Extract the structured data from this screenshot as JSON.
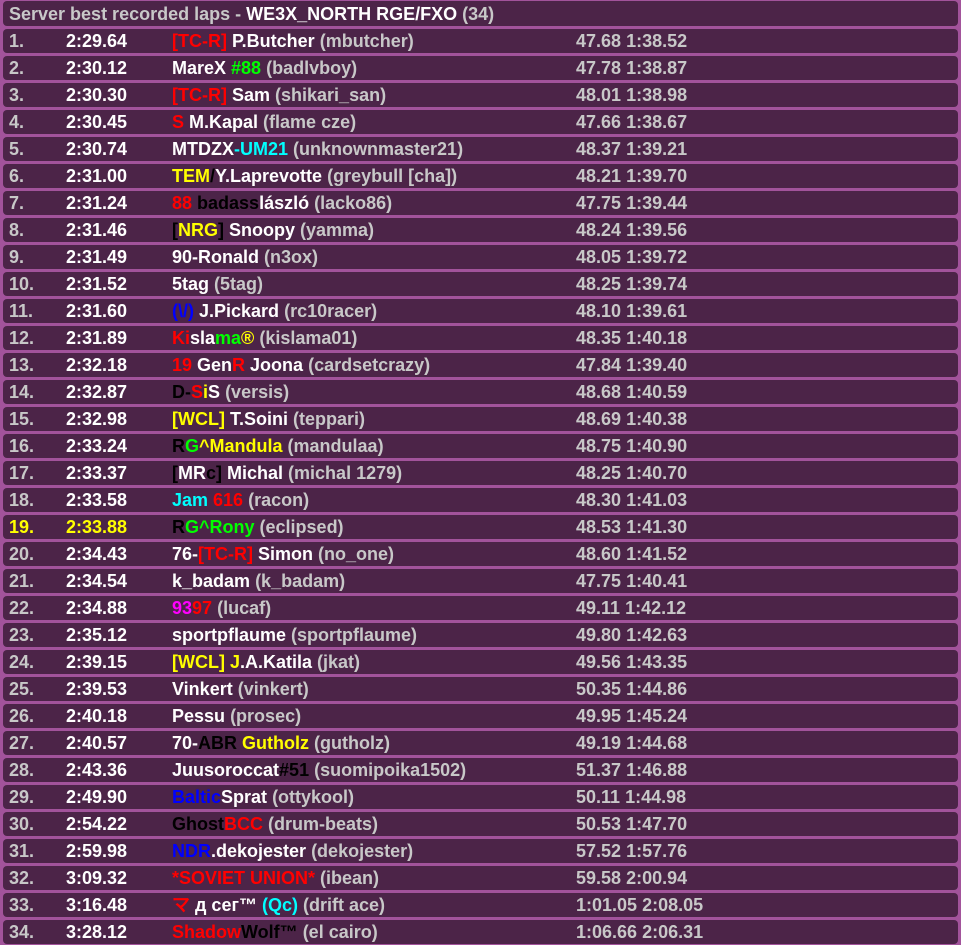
{
  "title": {
    "prefix": "Server best recorded laps - ",
    "track": "WE3X_NORTH RGE/FXO",
    "count": "(34)"
  },
  "colors": {
    "background": "#a2539b",
    "row": "#4c2448",
    "highlight": "#ffff00"
  },
  "highlighted_rank": "19.",
  "rows": [
    {
      "rank": "1.",
      "time": "2:29.64",
      "name": [
        [
          "[TC-R]",
          "#ff0000"
        ],
        [
          " P.Butcher",
          "#ffffff"
        ]
      ],
      "user": "(mbutcher)",
      "s1": "47.68",
      "s2": "1:38.52"
    },
    {
      "rank": "2.",
      "time": "2:30.12",
      "name": [
        [
          "MareX ",
          "#ffffff"
        ],
        [
          "#88",
          "#00ff00"
        ]
      ],
      "user": "(badlvboy)",
      "s1": "47.78",
      "s2": "1:38.87"
    },
    {
      "rank": "3.",
      "time": "2:30.30",
      "name": [
        [
          "[TC-R]",
          "#ff0000"
        ],
        [
          " Sam",
          "#ffffff"
        ]
      ],
      "user": "(shikari_san)",
      "s1": "48.01",
      "s2": "1:38.98"
    },
    {
      "rank": "4.",
      "time": "2:30.45",
      "name": [
        [
          "S",
          "#ff0000"
        ],
        [
          " M.Kapal",
          "#ffffff"
        ]
      ],
      "user": "(flame cze)",
      "s1": "47.66",
      "s2": "1:38.67"
    },
    {
      "rank": "5.",
      "time": "2:30.74",
      "name": [
        [
          "MTDZX",
          "#ffffff"
        ],
        [
          "-UM21",
          "#00ffff"
        ]
      ],
      "user": "(unknownmaster21)",
      "s1": "48.37",
      "s2": "1:39.21"
    },
    {
      "rank": "6.",
      "time": "2:31.00",
      "name": [
        [
          "TEM",
          "#ffff00"
        ],
        [
          "/",
          "#000000"
        ],
        [
          "Y.Laprevotte",
          "#ffffff"
        ]
      ],
      "user": "(greybull [cha])",
      "s1": "48.21",
      "s2": "1:39.70"
    },
    {
      "rank": "7.",
      "time": "2:31.24",
      "name": [
        [
          "88 ",
          "#ff0000"
        ],
        [
          "badass",
          "#000000"
        ],
        [
          "lászló",
          "#ffffff"
        ]
      ],
      "user": "(lacko86)",
      "s1": "47.75",
      "s2": "1:39.44"
    },
    {
      "rank": "8.",
      "time": "2:31.46",
      "name": [
        [
          "[",
          "#000000"
        ],
        [
          "NRG",
          "#ffff00"
        ],
        [
          "]",
          "#000000"
        ],
        [
          " Snoopy",
          "#ffffff"
        ]
      ],
      "user": "(yamma)",
      "s1": "48.24",
      "s2": "1:39.56"
    },
    {
      "rank": "9.",
      "time": "2:31.49",
      "name": [
        [
          "90-Ronald",
          "#ffffff"
        ]
      ],
      "user": "(n3ox)",
      "s1": "48.05",
      "s2": "1:39.72"
    },
    {
      "rank": "10.",
      "time": "2:31.52",
      "name": [
        [
          "5tag",
          "#ffffff"
        ]
      ],
      "user": "(5tag)",
      "s1": "48.25",
      "s2": "1:39.74"
    },
    {
      "rank": "11.",
      "time": "2:31.60",
      "name": [
        [
          "(\\/)",
          "#0000ff"
        ],
        [
          " J.Pickard",
          "#ffffff"
        ]
      ],
      "user": "(rc10racer)",
      "s1": "48.10",
      "s2": "1:39.61"
    },
    {
      "rank": "12.",
      "time": "2:31.89",
      "name": [
        [
          "Ki",
          "#ff0000"
        ],
        [
          "sla",
          "#ffffff"
        ],
        [
          "ma",
          "#00ff00"
        ],
        [
          "®",
          "#ffff00"
        ]
      ],
      "user": "(kislama01)",
      "s1": "48.35",
      "s2": "1:40.18"
    },
    {
      "rank": "13.",
      "time": "2:32.18",
      "name": [
        [
          "19 ",
          "#ff0000"
        ],
        [
          "Gen",
          "#ffffff"
        ],
        [
          "R",
          "#ff0000"
        ],
        [
          " Joona",
          "#ffffff"
        ]
      ],
      "user": "(cardsetcrazy)",
      "s1": "47.84",
      "s2": "1:39.40"
    },
    {
      "rank": "14.",
      "time": "2:32.87",
      "name": [
        [
          "D-",
          "#000000"
        ],
        [
          "S",
          "#ff0000"
        ],
        [
          "i",
          "#ffff00"
        ],
        [
          "S",
          "#ffffff"
        ]
      ],
      "user": "(versis)",
      "s1": "48.68",
      "s2": "1:40.59"
    },
    {
      "rank": "15.",
      "time": "2:32.98",
      "name": [
        [
          "[WCL]",
          "#ffff00"
        ],
        [
          " T.Soini",
          "#ffffff"
        ]
      ],
      "user": "(teppari)",
      "s1": "48.69",
      "s2": "1:40.38"
    },
    {
      "rank": "16.",
      "time": "2:33.24",
      "name": [
        [
          "R",
          "#000000"
        ],
        [
          "G",
          "#00ff00"
        ],
        [
          "^Mandula",
          "#ffff00"
        ]
      ],
      "user": "(mandulaa)",
      "s1": "48.75",
      "s2": "1:40.90"
    },
    {
      "rank": "17.",
      "time": "2:33.37",
      "name": [
        [
          "[",
          "#000000"
        ],
        [
          "MR",
          "#ffffff"
        ],
        [
          "c]",
          "#000000"
        ],
        [
          " Michal",
          "#ffffff"
        ]
      ],
      "user": "(michal 1279)",
      "s1": "48.25",
      "s2": "1:40.70"
    },
    {
      "rank": "18.",
      "time": "2:33.58",
      "name": [
        [
          "Jam ",
          "#00ffff"
        ],
        [
          "616",
          "#ff0000"
        ]
      ],
      "user": "(racon)",
      "s1": "48.30",
      "s2": "1:41.03"
    },
    {
      "rank": "19.",
      "time": "2:33.88",
      "name": [
        [
          "R",
          "#000000"
        ],
        [
          "G^Rony",
          "#00ff00"
        ]
      ],
      "user": "(eclipsed)",
      "s1": "48.53",
      "s2": "1:41.30"
    },
    {
      "rank": "20.",
      "time": "2:34.43",
      "name": [
        [
          "76-",
          "#ffffff"
        ],
        [
          "[TC-R]",
          "#ff0000"
        ],
        [
          " Simon",
          "#ffffff"
        ]
      ],
      "user": "(no_one)",
      "s1": "48.60",
      "s2": "1:41.52"
    },
    {
      "rank": "21.",
      "time": "2:34.54",
      "name": [
        [
          "k_badam",
          "#ffffff"
        ]
      ],
      "user": "(k_badam)",
      "s1": "47.75",
      "s2": "1:40.41"
    },
    {
      "rank": "22.",
      "time": "2:34.88",
      "name": [
        [
          "93",
          "#ff00ff"
        ],
        [
          "97",
          "#ff0000"
        ]
      ],
      "user": "(lucaf)",
      "s1": "49.11",
      "s2": "1:42.12"
    },
    {
      "rank": "23.",
      "time": "2:35.12",
      "name": [
        [
          "sportpflaume",
          "#ffffff"
        ]
      ],
      "user": "(sportpflaume)",
      "s1": "49.80",
      "s2": "1:42.63"
    },
    {
      "rank": "24.",
      "time": "2:39.15",
      "name": [
        [
          "[WCL] J",
          "#ffff00"
        ],
        [
          ".A.Katila",
          "#ffffff"
        ]
      ],
      "user": "(jkat)",
      "s1": "49.56",
      "s2": "1:43.35"
    },
    {
      "rank": "25.",
      "time": "2:39.53",
      "name": [
        [
          "Vinkert",
          "#ffffff"
        ]
      ],
      "user": "(vinkert)",
      "s1": "50.35",
      "s2": "1:44.86"
    },
    {
      "rank": "26.",
      "time": "2:40.18",
      "name": [
        [
          "Pessu",
          "#ffffff"
        ]
      ],
      "user": "(prosec)",
      "s1": "49.95",
      "s2": "1:45.24"
    },
    {
      "rank": "27.",
      "time": "2:40.57",
      "name": [
        [
          "70-",
          "#ffffff"
        ],
        [
          "ABR",
          "#000000"
        ],
        [
          " Gutholz",
          "#ffff00"
        ]
      ],
      "user": "(gutholz)",
      "s1": "49.19",
      "s2": "1:44.68"
    },
    {
      "rank": "28.",
      "time": "2:43.36",
      "name": [
        [
          "Juusoroccat",
          "#ffffff"
        ],
        [
          "#51",
          "#000000"
        ]
      ],
      "user": "(suomipoika1502)",
      "s1": "51.37",
      "s2": "1:46.88"
    },
    {
      "rank": "29.",
      "time": "2:49.90",
      "name": [
        [
          "Baltic",
          "#0000ff"
        ],
        [
          "Sprat",
          "#ffffff"
        ]
      ],
      "user": "(ottykool)",
      "s1": "50.11",
      "s2": "1:44.98"
    },
    {
      "rank": "30.",
      "time": "2:54.22",
      "name": [
        [
          "Ghost",
          "#000000"
        ],
        [
          "BCC",
          "#ff0000"
        ]
      ],
      "user": "(drum-beats)",
      "s1": "50.53",
      "s2": "1:47.70"
    },
    {
      "rank": "31.",
      "time": "2:59.98",
      "name": [
        [
          "NDR",
          "#0000ff"
        ],
        [
          ".dekojester",
          "#ffffff"
        ]
      ],
      "user": "(dekojester)",
      "s1": "57.52",
      "s2": "1:57.76"
    },
    {
      "rank": "32.",
      "time": "3:09.32",
      "name": [
        [
          "*SOVIET UNION*",
          "#ff0000"
        ]
      ],
      "user": "(ibean)",
      "s1": "59.58",
      "s2": "2:00.94"
    },
    {
      "rank": "33.",
      "time": "3:16.48",
      "name": [
        [
          "マ",
          "#ff0000"
        ],
        [
          " д сег™ ",
          "#ffffff"
        ],
        [
          "(Qc)",
          "#00ffff"
        ]
      ],
      "user": "(drift ace)",
      "s1": "1:01.05",
      "s2": "2:08.05"
    },
    {
      "rank": "34.",
      "time": "3:28.12",
      "name": [
        [
          "Shadow",
          "#ff0000"
        ],
        [
          "Wolf™",
          "#000000"
        ]
      ],
      "user": "(el cairo)",
      "s1": "1:06.66",
      "s2": "2:06.31"
    }
  ]
}
